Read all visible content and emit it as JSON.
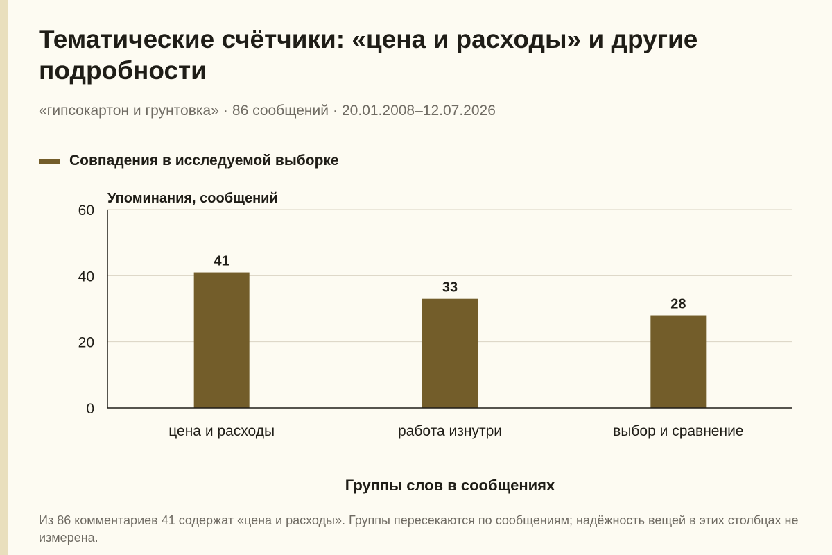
{
  "header": {
    "title": "Тематические счётчики: «цена и расходы» и другие подробности",
    "subtitle_parts": [
      "«гипсокартон и грунтовка»",
      "86 сообщений",
      "20.01.2008–12.07.2026"
    ],
    "subtitle_separator": "·"
  },
  "chart_data": {
    "type": "bar",
    "categories": [
      "цена и расходы",
      "работа изнутри",
      "выбор и сравнение"
    ],
    "series": [
      {
        "name": "Совпадения в исследуемой выборке",
        "values": [
          41,
          33,
          28
        ],
        "color": "#735d2a"
      }
    ],
    "ylabel": "Упоминания, сообщений",
    "xlabel": "Группы слов в сообщениях",
    "ylim": [
      0,
      60
    ],
    "yticks": [
      0,
      20,
      40,
      60
    ],
    "grid": true,
    "legend_position": "top-left",
    "data_labels": true
  },
  "footer": {
    "note": "Из 86 комментариев 41 содержат «цена и расходы». Группы пересекаются по сообщениям; надёжность вещей в этих столбцах не измерена."
  },
  "colors": {
    "background": "#fdfbf2",
    "accent_stripe": "#e9dfbd",
    "bar": "#735d2a",
    "gridline": "#d9d3c3",
    "axis": "#1f1d17"
  }
}
